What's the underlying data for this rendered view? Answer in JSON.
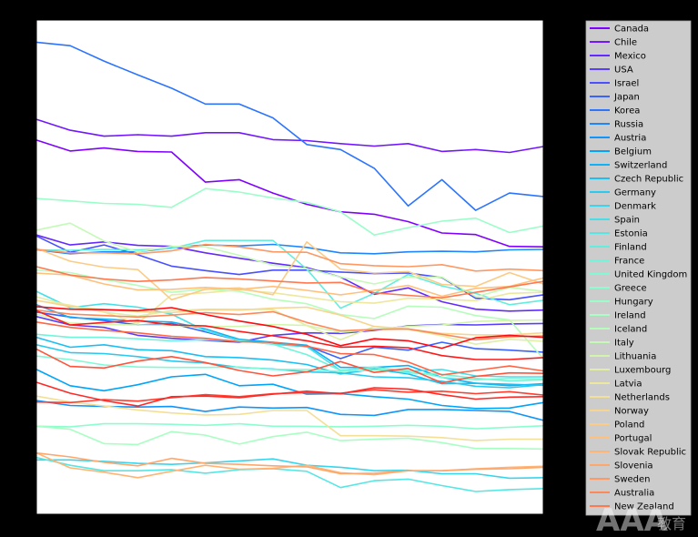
{
  "chart_data": {
    "type": "line",
    "title": "",
    "xlabel": "",
    "ylabel": "",
    "x": [
      0,
      1,
      2,
      3,
      4,
      5,
      6,
      7,
      8,
      9,
      10,
      11,
      12,
      13,
      14,
      15
    ],
    "xlim": [
      0,
      15
    ],
    "ylim": [
      0,
      1
    ],
    "grid": false,
    "legend_position": "outside-right",
    "series": [
      {
        "name": "Canada",
        "color": "#8000ff",
        "values": [
          0.757,
          0.735,
          0.741,
          0.734,
          0.733,
          0.672,
          0.677,
          0.65,
          0.627,
          0.612,
          0.607,
          0.592,
          0.569,
          0.566,
          0.542,
          0.541
        ]
      },
      {
        "name": "Chile",
        "color": "#7216ff",
        "values": [
          0.799,
          0.777,
          0.765,
          0.768,
          0.765,
          0.772,
          0.772,
          0.758,
          0.756,
          0.75,
          0.745,
          0.75,
          0.734,
          0.738,
          0.732,
          0.744
        ]
      },
      {
        "name": "Mexico",
        "color": "#6429ff",
        "values": [
          0.565,
          0.545,
          0.551,
          0.544,
          0.542,
          0.529,
          0.518,
          0.508,
          0.499,
          0.48,
          0.445,
          0.458,
          0.43,
          0.415,
          0.411,
          0.413
        ]
      },
      {
        "name": "USA",
        "color": "#563dff",
        "values": [
          0.4,
          0.383,
          0.378,
          0.362,
          0.356,
          0.352,
          0.348,
          0.362,
          0.367,
          0.366,
          0.372,
          0.381,
          0.384,
          0.383,
          0.385,
          0.386
        ]
      },
      {
        "name": "Israel",
        "color": "#4850ff",
        "values": [
          0.563,
          0.53,
          0.545,
          0.525,
          0.502,
          0.493,
          0.485,
          0.494,
          0.494,
          0.49,
          0.487,
          0.488,
          0.479,
          0.437,
          0.434,
          0.444
        ]
      },
      {
        "name": "Japan",
        "color": "#3a62fe",
        "values": [
          0.409,
          0.399,
          0.392,
          0.383,
          0.386,
          0.369,
          0.352,
          0.345,
          0.341,
          0.315,
          0.338,
          0.332,
          0.348,
          0.335,
          0.332,
          0.328
        ]
      },
      {
        "name": "Korea",
        "color": "#2c74fd",
        "values": [
          0.955,
          0.948,
          0.917,
          0.889,
          0.862,
          0.83,
          0.83,
          0.802,
          0.748,
          0.738,
          0.7,
          0.624,
          0.677,
          0.615,
          0.65,
          0.643
        ]
      },
      {
        "name": "Russia",
        "color": "#1e85fc",
        "values": [
          0.535,
          0.527,
          0.531,
          0.531,
          0.539,
          0.545,
          0.543,
          0.546,
          0.54,
          0.529,
          0.527,
          0.531,
          0.532,
          0.531,
          0.535,
          0.536
        ]
      },
      {
        "name": "Austria",
        "color": "#1095fb",
        "values": [
          0.23,
          0.22,
          0.218,
          0.217,
          0.218,
          0.208,
          0.217,
          0.215,
          0.216,
          0.202,
          0.2,
          0.212,
          0.212,
          0.21,
          0.208,
          0.19
        ]
      },
      {
        "name": "Belgium",
        "color": "#00a4f9",
        "values": [
          0.293,
          0.26,
          0.25,
          0.262,
          0.278,
          0.283,
          0.26,
          0.263,
          0.243,
          0.244,
          0.238,
          0.233,
          0.22,
          0.214,
          0.215,
          0.226
        ]
      },
      {
        "name": "Switzerland",
        "color": "#0eb2f6",
        "values": [
          0.424,
          0.398,
          0.395,
          0.391,
          0.389,
          0.375,
          0.354,
          0.348,
          0.342,
          0.297,
          0.297,
          0.301,
          0.277,
          0.265,
          0.26,
          0.264
        ]
      },
      {
        "name": "Czech Republic",
        "color": "#1cbff3",
        "values": [
          0.358,
          0.338,
          0.343,
          0.333,
          0.331,
          0.319,
          0.317,
          0.312,
          0.303,
          0.284,
          0.294,
          0.284,
          0.264,
          0.265,
          0.263,
          0.261
        ]
      },
      {
        "name": "Germany",
        "color": "#2acaf0",
        "values": [
          0.343,
          0.327,
          0.325,
          0.319,
          0.31,
          0.306,
          0.297,
          0.294,
          0.288,
          0.286,
          0.278,
          0.276,
          0.269,
          0.259,
          0.256,
          0.262
        ]
      },
      {
        "name": "Denmark",
        "color": "#38d5ec",
        "values": [
          0.11,
          0.11,
          0.107,
          0.103,
          0.101,
          0.104,
          0.108,
          0.112,
          0.099,
          0.095,
          0.088,
          0.089,
          0.082,
          0.082,
          0.073,
          0.074
        ]
      },
      {
        "name": "Spain",
        "color": "#46dfe8",
        "values": [
          0.451,
          0.418,
          0.426,
          0.419,
          0.405,
          0.371,
          0.352,
          0.344,
          0.339,
          0.291,
          0.297,
          0.289,
          0.293,
          0.28,
          0.278,
          0.278
        ]
      },
      {
        "name": "Estonia",
        "color": "#54e7e4",
        "values": [
          0.115,
          0.099,
          0.088,
          0.088,
          0.09,
          0.083,
          0.09,
          0.092,
          0.087,
          0.054,
          0.068,
          0.071,
          0.058,
          0.046,
          0.05,
          0.052
        ]
      },
      {
        "name": "Finland",
        "color": "#62eedf",
        "values": [
          0.535,
          0.534,
          0.536,
          0.535,
          0.538,
          0.554,
          0.554,
          0.554,
          0.496,
          0.417,
          0.447,
          0.485,
          0.462,
          0.447,
          0.424,
          0.433
        ]
      },
      {
        "name": "France",
        "color": "#70f4da",
        "values": [
          0.364,
          0.358,
          0.358,
          0.355,
          0.351,
          0.353,
          0.351,
          0.344,
          0.323,
          0.291,
          0.298,
          0.286,
          0.283,
          0.275,
          0.27,
          0.272
        ]
      },
      {
        "name": "United Kingdom",
        "color": "#7efad4",
        "values": [
          0.32,
          0.313,
          0.302,
          0.298,
          0.297,
          0.297,
          0.298,
          0.293,
          0.293,
          0.289,
          0.292,
          0.291,
          0.277,
          0.272,
          0.275,
          0.274
        ]
      },
      {
        "name": "Greece",
        "color": "#8cfdcf",
        "values": [
          0.178,
          0.177,
          0.183,
          0.183,
          0.182,
          0.18,
          0.183,
          0.178,
          0.178,
          0.177,
          0.178,
          0.18,
          0.178,
          0.173,
          0.176,
          0.179
        ]
      },
      {
        "name": "Hungary",
        "color": "#9afec9",
        "values": [
          0.639,
          0.634,
          0.629,
          0.627,
          0.621,
          0.659,
          0.652,
          0.64,
          0.631,
          0.612,
          0.565,
          0.58,
          0.593,
          0.599,
          0.57,
          0.583
        ]
      },
      {
        "name": "Ireland",
        "color": "#a8ffc2",
        "values": [
          0.178,
          0.172,
          0.143,
          0.141,
          0.167,
          0.16,
          0.142,
          0.157,
          0.166,
          0.149,
          0.152,
          0.154,
          0.145,
          0.133,
          0.133,
          0.132
        ]
      },
      {
        "name": "Iceland",
        "color": "#b6fdbc",
        "values": [
          0.494,
          0.489,
          0.475,
          0.463,
          0.449,
          0.456,
          0.451,
          0.435,
          0.426,
          0.404,
          0.396,
          0.421,
          0.419,
          0.402,
          0.393,
          0.315
        ]
      },
      {
        "name": "Italy",
        "color": "#c4fab5",
        "values": [
          0.575,
          0.589,
          0.553,
          0.531,
          0.542,
          0.541,
          0.524,
          0.504,
          0.497,
          0.48,
          0.466,
          0.48,
          0.48,
          0.44,
          0.459,
          0.451
        ]
      },
      {
        "name": "Lithuania",
        "color": "#d2f4ad",
        "values": [
          0.405,
          0.387,
          0.384,
          0.383,
          0.382,
          0.38,
          0.38,
          0.384,
          0.382,
          0.368,
          0.374,
          0.38,
          0.383,
          0.39,
          0.392,
          0.393
        ]
      },
      {
        "name": "Luxembourg",
        "color": "#e0eea6",
        "values": [
          0.44,
          0.422,
          0.409,
          0.401,
          0.412,
          0.415,
          0.415,
          0.414,
          0.382,
          0.353,
          0.38,
          0.374,
          0.361,
          0.344,
          0.354,
          0.35
        ]
      },
      {
        "name": "Latvia",
        "color": "#eee79e",
        "values": [
          0.432,
          0.423,
          0.409,
          0.386,
          0.444,
          0.448,
          0.454,
          0.448,
          0.439,
          0.43,
          0.427,
          0.437,
          0.435,
          0.432,
          0.447,
          0.449
        ]
      },
      {
        "name": "Netherlands",
        "color": "#f4df96",
        "values": [
          0.239,
          0.227,
          0.219,
          0.211,
          0.205,
          0.201,
          0.202,
          0.21,
          0.21,
          0.159,
          0.159,
          0.158,
          0.155,
          0.149,
          0.152,
          0.152
        ]
      },
      {
        "name": "Norway",
        "color": "#f8d58e",
        "values": [
          0.433,
          0.42,
          0.414,
          0.41,
          0.408,
          0.414,
          0.413,
          0.417,
          0.419,
          0.403,
          0.38,
          0.375,
          0.366,
          0.363,
          0.363,
          0.367
        ]
      },
      {
        "name": "Poland",
        "color": "#fccb85",
        "values": [
          0.538,
          0.512,
          0.5,
          0.495,
          0.434,
          0.455,
          0.458,
          0.444,
          0.551,
          0.496,
          0.488,
          0.491,
          0.465,
          0.461,
          0.489,
          0.466
        ]
      },
      {
        "name": "Portugal",
        "color": "#ffc07c",
        "values": [
          0.488,
          0.484,
          0.466,
          0.454,
          0.455,
          0.459,
          0.455,
          0.461,
          0.453,
          0.444,
          0.453,
          0.463,
          0.441,
          0.457,
          0.461,
          0.478
        ]
      },
      {
        "name": "Slovak Republic",
        "color": "#ffb474",
        "values": [
          0.124,
          0.094,
          0.085,
          0.074,
          0.087,
          0.099,
          0.091,
          0.093,
          0.099,
          0.084,
          0.08,
          0.088,
          0.088,
          0.092,
          0.095,
          0.097
        ]
      },
      {
        "name": "Slovenia",
        "color": "#ffa66b",
        "values": [
          0.124,
          0.116,
          0.105,
          0.098,
          0.113,
          0.103,
          0.101,
          0.098,
          0.096,
          0.082,
          0.083,
          0.088,
          0.088,
          0.091,
          0.092,
          0.095
        ]
      },
      {
        "name": "Sweden",
        "color": "#ff9862",
        "values": [
          0.536,
          0.529,
          0.529,
          0.527,
          0.533,
          0.546,
          0.541,
          0.531,
          0.53,
          0.507,
          0.503,
          0.501,
          0.505,
          0.492,
          0.496,
          0.493
        ]
      },
      {
        "name": "Australia",
        "color": "#ff8859",
        "values": [
          0.413,
          0.405,
          0.402,
          0.399,
          0.403,
          0.408,
          0.404,
          0.41,
          0.388,
          0.371,
          0.374,
          0.375,
          0.364,
          0.353,
          0.359,
          0.361
        ]
      },
      {
        "name": "New Zealand",
        "color": "#ff784f",
        "values": [
          0.501,
          0.484,
          0.476,
          0.471,
          0.474,
          0.479,
          0.476,
          0.472,
          0.468,
          0.469,
          0.448,
          0.443,
          0.438,
          0.449,
          0.46,
          0.471
        ]
      },
      {
        "name": "",
        "color": "#ff6645",
        "values": [
          0.389,
          0.378,
          0.372,
          0.367,
          0.36,
          0.356,
          0.349,
          0.348,
          0.34,
          0.325,
          0.323,
          0.308,
          0.282,
          0.291,
          0.3,
          0.29
        ]
      },
      {
        "name": "",
        "color": "#ff533b",
        "values": [
          0.334,
          0.299,
          0.296,
          0.31,
          0.319,
          0.307,
          0.291,
          0.28,
          0.288,
          0.309,
          0.287,
          0.295,
          0.266,
          0.279,
          0.286,
          0.285
        ]
      },
      {
        "name": "",
        "color": "#ff3e30",
        "values": [
          0.227,
          0.226,
          0.232,
          0.229,
          0.236,
          0.242,
          0.238,
          0.244,
          0.246,
          0.245,
          0.252,
          0.247,
          0.249,
          0.244,
          0.248,
          0.241
        ]
      },
      {
        "name": "",
        "color": "#ff2a25",
        "values": [
          0.267,
          0.245,
          0.23,
          0.219,
          0.238,
          0.239,
          0.236,
          0.243,
          0.249,
          0.244,
          0.256,
          0.253,
          0.242,
          0.233,
          0.237,
          0.238
        ]
      },
      {
        "name": "",
        "color": "#ff1a1a",
        "values": [
          0.412,
          0.383,
          0.388,
          0.392,
          0.383,
          0.381,
          0.37,
          0.361,
          0.351,
          0.338,
          0.34,
          0.337,
          0.321,
          0.313,
          0.313,
          0.317
        ]
      },
      {
        "name": "",
        "color": "#ff0a10",
        "values": [
          0.42,
          0.415,
          0.414,
          0.412,
          0.418,
          0.404,
          0.391,
          0.38,
          0.364,
          0.341,
          0.355,
          0.351,
          0.336,
          0.357,
          0.362,
          0.358
        ]
      }
    ]
  },
  "watermark": {
    "text": "AAA",
    "suffix": "教育"
  }
}
